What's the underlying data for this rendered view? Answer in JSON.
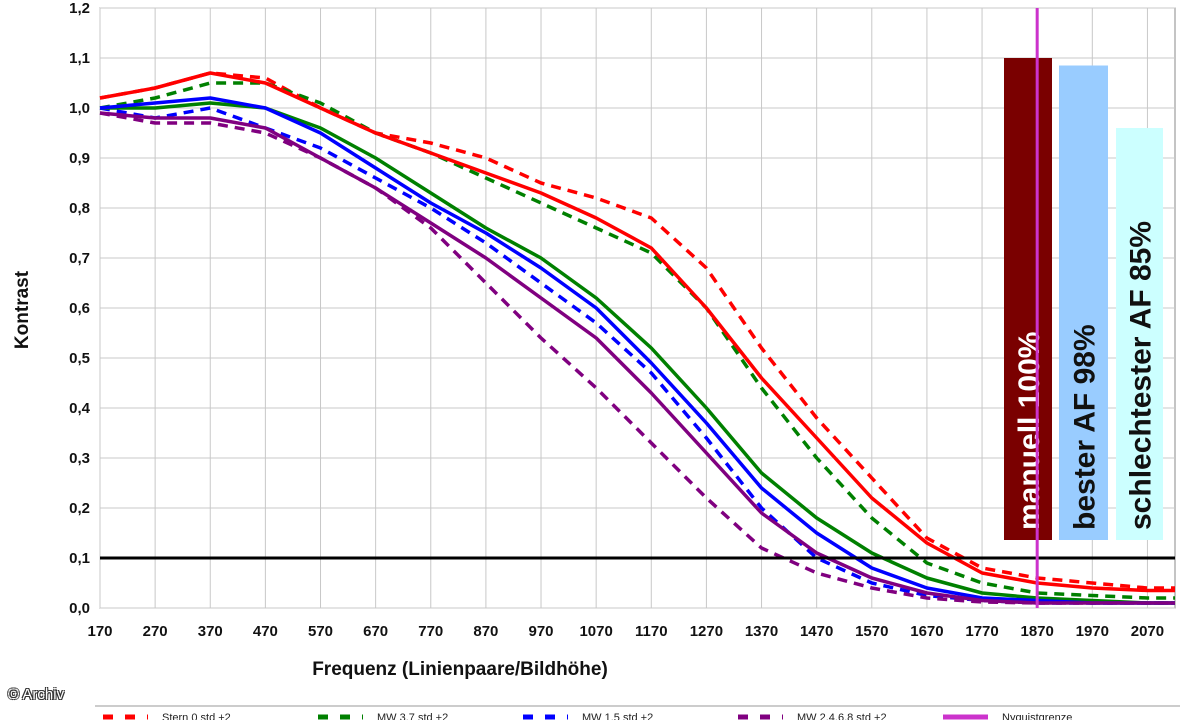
{
  "copyright": "© Archiv",
  "chart_data": {
    "type": "line",
    "xlabel": "Frequenz (Linienpaare/Bildhöhe)",
    "ylabel": "Kontrast",
    "xlim": [
      170,
      2120
    ],
    "ylim": [
      0,
      1.2
    ],
    "xticks": [
      "170",
      "270",
      "370",
      "470",
      "570",
      "670",
      "770",
      "870",
      "970",
      "1070",
      "1170",
      "1270",
      "1370",
      "1470",
      "1570",
      "1670",
      "1770",
      "1870",
      "1970",
      "2070"
    ],
    "yticks": [
      "0,0",
      "0,1",
      "0,2",
      "0,3",
      "0,4",
      "0,5",
      "0,6",
      "0,7",
      "0,8",
      "0,9",
      "1,0",
      "1,1",
      "1,2"
    ],
    "grid": true,
    "reference_line": {
      "y": 0.1,
      "color": "#000000"
    },
    "nyquist_line": {
      "x": 1870,
      "color": "#cc33cc"
    },
    "series": [
      {
        "name": "Stern 0 std +2",
        "color": "#ff0000",
        "dashed": true,
        "x": [
          170,
          270,
          370,
          470,
          570,
          670,
          770,
          870,
          970,
          1070,
          1170,
          1270,
          1370,
          1470,
          1570,
          1670,
          1770,
          1870,
          1970,
          2070,
          2120
        ],
        "y": [
          1.02,
          1.04,
          1.07,
          1.06,
          1.0,
          0.95,
          0.93,
          0.9,
          0.85,
          0.82,
          0.78,
          0.68,
          0.52,
          0.38,
          0.26,
          0.14,
          0.08,
          0.06,
          0.05,
          0.04,
          0.04
        ]
      },
      {
        "name": "MW 3,7 std +2",
        "color": "#008000",
        "dashed": true,
        "x": [
          170,
          270,
          370,
          470,
          570,
          670,
          770,
          870,
          970,
          1070,
          1170,
          1270,
          1370,
          1470,
          1570,
          1670,
          1770,
          1870,
          1970,
          2070,
          2120
        ],
        "y": [
          1.0,
          1.02,
          1.05,
          1.05,
          1.01,
          0.95,
          0.91,
          0.86,
          0.81,
          0.76,
          0.71,
          0.6,
          0.44,
          0.3,
          0.18,
          0.09,
          0.05,
          0.03,
          0.025,
          0.02,
          0.02
        ]
      },
      {
        "name": "MW 1,5 std +2",
        "color": "#0000ff",
        "dashed": true,
        "x": [
          170,
          270,
          370,
          470,
          570,
          670,
          770,
          870,
          970,
          1070,
          1170,
          1270,
          1370,
          1470,
          1570,
          1670,
          1770,
          1870,
          1970,
          2070,
          2120
        ],
        "y": [
          1.0,
          0.98,
          1.0,
          0.96,
          0.92,
          0.86,
          0.8,
          0.73,
          0.65,
          0.57,
          0.47,
          0.34,
          0.2,
          0.1,
          0.05,
          0.025,
          0.015,
          0.01,
          0.01,
          0.01,
          0.01
        ]
      },
      {
        "name": "MW 2,4,6,8 std +2",
        "color": "#800080",
        "dashed": true,
        "x": [
          170,
          270,
          370,
          470,
          570,
          670,
          770,
          870,
          970,
          1070,
          1170,
          1270,
          1370,
          1470,
          1570,
          1670,
          1770,
          1870,
          1970,
          2070,
          2120
        ],
        "y": [
          0.99,
          0.97,
          0.97,
          0.95,
          0.9,
          0.84,
          0.76,
          0.65,
          0.54,
          0.44,
          0.33,
          0.22,
          0.12,
          0.07,
          0.04,
          0.02,
          0.012,
          0.01,
          0.01,
          0.01,
          0.01
        ]
      },
      {
        "name": "Stern 0 std",
        "color": "#ff0000",
        "dashed": false,
        "x": [
          170,
          270,
          370,
          470,
          570,
          670,
          770,
          870,
          970,
          1070,
          1170,
          1270,
          1370,
          1470,
          1570,
          1670,
          1770,
          1870,
          1970,
          2070,
          2120
        ],
        "y": [
          1.02,
          1.04,
          1.07,
          1.05,
          1.0,
          0.95,
          0.91,
          0.87,
          0.83,
          0.78,
          0.72,
          0.6,
          0.46,
          0.34,
          0.22,
          0.13,
          0.07,
          0.05,
          0.04,
          0.035,
          0.035
        ]
      },
      {
        "name": "MW 3,7 std",
        "color": "#008000",
        "dashed": false,
        "x": [
          170,
          270,
          370,
          470,
          570,
          670,
          770,
          870,
          970,
          1070,
          1170,
          1270,
          1370,
          1470,
          1570,
          1670,
          1770,
          1870,
          1970,
          2070,
          2120
        ],
        "y": [
          1.0,
          1.0,
          1.01,
          1.0,
          0.96,
          0.9,
          0.83,
          0.76,
          0.7,
          0.62,
          0.52,
          0.4,
          0.27,
          0.18,
          0.11,
          0.06,
          0.03,
          0.02,
          0.015,
          0.01,
          0.01
        ]
      },
      {
        "name": "MW 1,5 std",
        "color": "#0000ff",
        "dashed": false,
        "x": [
          170,
          270,
          370,
          470,
          570,
          670,
          770,
          870,
          970,
          1070,
          1170,
          1270,
          1370,
          1470,
          1570,
          1670,
          1770,
          1870,
          1970,
          2070,
          2120
        ],
        "y": [
          1.0,
          1.01,
          1.02,
          1.0,
          0.95,
          0.88,
          0.81,
          0.75,
          0.68,
          0.6,
          0.49,
          0.37,
          0.24,
          0.15,
          0.08,
          0.04,
          0.02,
          0.015,
          0.01,
          0.01,
          0.01
        ]
      },
      {
        "name": "MW 2,4,6,8 std",
        "color": "#800080",
        "dashed": false,
        "x": [
          170,
          270,
          370,
          470,
          570,
          670,
          770,
          870,
          970,
          1070,
          1170,
          1270,
          1370,
          1470,
          1570,
          1670,
          1770,
          1870,
          1970,
          2070,
          2120
        ],
        "y": [
          0.99,
          0.98,
          0.98,
          0.96,
          0.9,
          0.84,
          0.77,
          0.7,
          0.62,
          0.54,
          0.43,
          0.31,
          0.19,
          0.11,
          0.06,
          0.03,
          0.015,
          0.01,
          0.01,
          0.01,
          0.01
        ]
      }
    ],
    "legend": [
      {
        "label": "Stern 0 std +2",
        "color": "#ff0000",
        "dashed": true
      },
      {
        "label": "MW 3,7 std +2",
        "color": "#008000",
        "dashed": true
      },
      {
        "label": "MW 1,5 std +2",
        "color": "#0000ff",
        "dashed": true
      },
      {
        "label": "MW 2,4,6,8 std +2",
        "color": "#800080",
        "dashed": true
      },
      {
        "label": "Nyquistgrenze",
        "color": "#cc33cc",
        "dashed": false
      }
    ],
    "bars": [
      {
        "label": "manuell 100%",
        "value": 1.1,
        "color": "#7a0000",
        "text_color": "#ffffff"
      },
      {
        "label": "bester AF 98%",
        "value": 1.085,
        "color": "#99ccff",
        "text_color": "#111111"
      },
      {
        "label": "schlechtester AF 85%",
        "value": 0.96,
        "color": "#ccffff",
        "text_color": "#111111"
      }
    ]
  }
}
